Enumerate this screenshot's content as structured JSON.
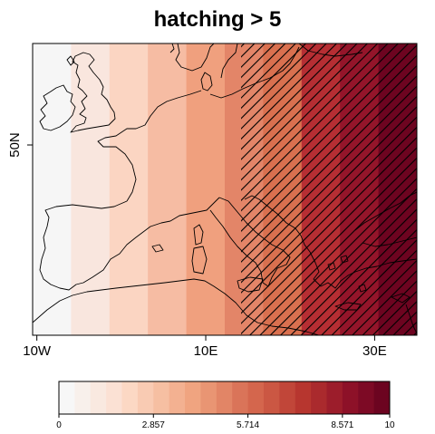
{
  "title": "hatching > 5",
  "map": {
    "lon_range": [
      -10.5,
      35
    ],
    "lat_range": [
      35,
      58
    ],
    "x_ticks": [
      {
        "value": -10,
        "label": "10W"
      },
      {
        "value": 10,
        "label": "10E"
      },
      {
        "value": 30,
        "label": "30E"
      }
    ],
    "y_ticks": [
      {
        "value": 50,
        "label": "50N"
      }
    ],
    "field_description_values": [
      0.0,
      1.11,
      2.22,
      3.33,
      4.44,
      5.56,
      6.67,
      7.78,
      8.89,
      10.0
    ],
    "hatch_threshold": 5
  },
  "colorbar": {
    "range": [
      0,
      10
    ],
    "levels": 22,
    "colors": [
      "#f7f7f7",
      "#f8f0eb",
      "#f9e9e0",
      "#fbe1d4",
      "#fcd8c4",
      "#f9cbb3",
      "#f6bfa2",
      "#f3b191",
      "#f0a480",
      "#e99573",
      "#e28566",
      "#da7459",
      "#d4664d",
      "#cb5743",
      "#c14639",
      "#b7362f",
      "#aa2a2d",
      "#9c1d2b",
      "#8d1128",
      "#7d0a25",
      "#6c0420"
    ],
    "tick_labels": [
      "0",
      "2.857",
      "5.714",
      "8.571",
      "10"
    ],
    "tick_values": [
      0,
      2.857,
      5.714,
      8.571,
      10
    ]
  },
  "colors": {
    "coast": "#000000",
    "hatch": "#000000",
    "band_colors": [
      "#f6f6f6",
      "#f9e6de",
      "#fbd5c2",
      "#f6bca3",
      "#f0a07e",
      "#e38568",
      "#d9704f",
      "#b62e33",
      "#94152a",
      "#6d0420"
    ]
  }
}
